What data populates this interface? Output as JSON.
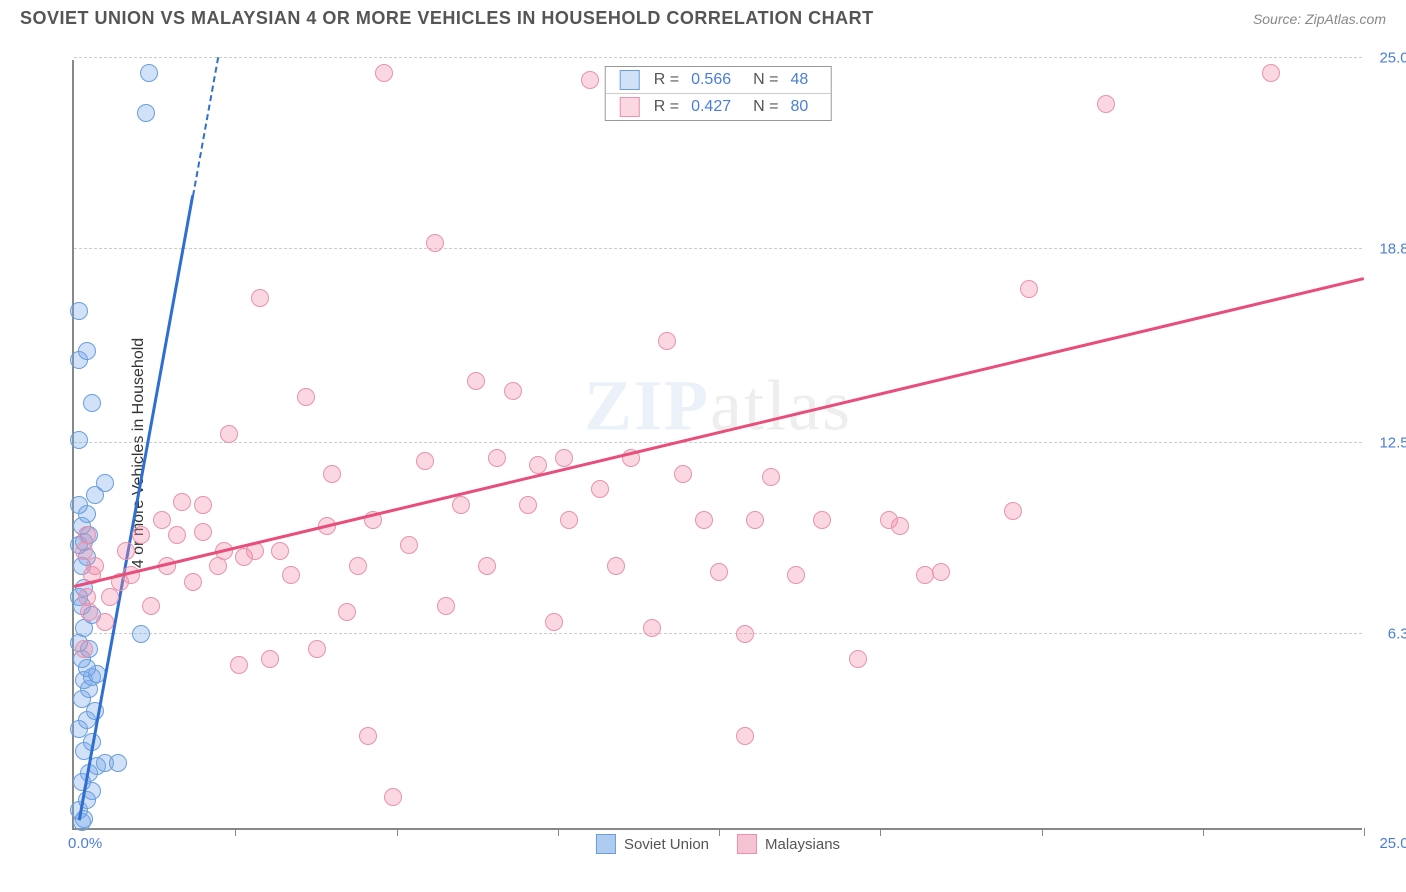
{
  "header": {
    "title": "SOVIET UNION VS MALAYSIAN 4 OR MORE VEHICLES IN HOUSEHOLD CORRELATION CHART",
    "source": "Source: ZipAtlas.com"
  },
  "chart": {
    "type": "scatter",
    "ylabel": "4 or more Vehicles in Household",
    "xlim": [
      0,
      25
    ],
    "ylim": [
      0,
      25
    ],
    "x_origin_label": "0.0%",
    "x_max_label": "25.0%",
    "yticks": [
      {
        "v": 6.3,
        "label": "6.3%"
      },
      {
        "v": 12.5,
        "label": "12.5%"
      },
      {
        "v": 18.8,
        "label": "18.8%"
      },
      {
        "v": 25.0,
        "label": "25.0%"
      }
    ],
    "xticks": [
      3.125,
      6.25,
      9.375,
      12.5,
      15.625,
      18.75,
      21.875,
      25
    ],
    "grid_color": "#cccccc",
    "background_color": "#ffffff",
    "axis_color": "#888888",
    "tick_label_color": "#4a7dd8",
    "marker_radius": 9,
    "watermark": "ZIPatlas",
    "series": [
      {
        "name": "Soviet Union",
        "color_fill": "rgba(120,170,235,0.35)",
        "color_stroke": "#6a9edb",
        "trend_color": "#2f6fd0",
        "r": "0.566",
        "n": "48",
        "trend": {
          "x1": 0.1,
          "y1": 0.2,
          "x2": 2.3,
          "y2": 20.5,
          "dash_to_y": 27
        },
        "points": [
          [
            0.15,
            0.2
          ],
          [
            0.2,
            0.3
          ],
          [
            0.1,
            0.6
          ],
          [
            0.25,
            0.9
          ],
          [
            0.35,
            1.2
          ],
          [
            0.15,
            1.5
          ],
          [
            0.3,
            1.8
          ],
          [
            0.45,
            2.0
          ],
          [
            0.6,
            2.1
          ],
          [
            0.85,
            2.1
          ],
          [
            0.2,
            2.5
          ],
          [
            0.35,
            2.8
          ],
          [
            0.1,
            3.2
          ],
          [
            0.25,
            3.5
          ],
          [
            0.4,
            3.8
          ],
          [
            0.15,
            4.2
          ],
          [
            0.3,
            4.5
          ],
          [
            0.2,
            4.8
          ],
          [
            0.35,
            4.9
          ],
          [
            0.45,
            5.0
          ],
          [
            0.25,
            5.2
          ],
          [
            0.15,
            5.5
          ],
          [
            0.3,
            5.8
          ],
          [
            0.1,
            6.0
          ],
          [
            1.3,
            6.3
          ],
          [
            0.2,
            6.5
          ],
          [
            0.35,
            6.9
          ],
          [
            0.15,
            7.2
          ],
          [
            0.1,
            7.5
          ],
          [
            0.2,
            7.8
          ],
          [
            0.15,
            8.5
          ],
          [
            0.25,
            8.8
          ],
          [
            0.1,
            9.2
          ],
          [
            0.2,
            9.3
          ],
          [
            0.3,
            9.5
          ],
          [
            0.15,
            9.8
          ],
          [
            0.25,
            10.2
          ],
          [
            0.1,
            10.5
          ],
          [
            0.4,
            10.8
          ],
          [
            0.6,
            11.2
          ],
          [
            0.1,
            12.6
          ],
          [
            0.35,
            13.8
          ],
          [
            0.1,
            15.2
          ],
          [
            0.25,
            15.5
          ],
          [
            0.1,
            16.8
          ],
          [
            1.4,
            23.2
          ],
          [
            1.45,
            24.5
          ]
        ]
      },
      {
        "name": "Malaysians",
        "color_fill": "rgba(240,140,170,0.35)",
        "color_stroke": "#e892ad",
        "trend_color": "#e94d7a",
        "r": "0.427",
        "n": "80",
        "trend": {
          "x1": 0.0,
          "y1": 7.8,
          "x2": 25.0,
          "y2": 17.8
        },
        "points": [
          [
            0.2,
            5.8
          ],
          [
            0.3,
            7.0
          ],
          [
            0.25,
            7.5
          ],
          [
            0.35,
            8.2
          ],
          [
            0.4,
            8.5
          ],
          [
            0.2,
            9.0
          ],
          [
            0.25,
            9.5
          ],
          [
            0.6,
            6.7
          ],
          [
            0.7,
            7.5
          ],
          [
            0.9,
            8.0
          ],
          [
            1.0,
            9.0
          ],
          [
            1.1,
            8.2
          ],
          [
            1.3,
            9.5
          ],
          [
            1.5,
            7.2
          ],
          [
            1.7,
            10.0
          ],
          [
            1.8,
            8.5
          ],
          [
            2.0,
            9.5
          ],
          [
            2.1,
            10.6
          ],
          [
            2.3,
            8.0
          ],
          [
            2.5,
            9.6
          ],
          [
            2.5,
            10.5
          ],
          [
            2.8,
            8.5
          ],
          [
            2.9,
            9.0
          ],
          [
            3.0,
            12.8
          ],
          [
            3.2,
            5.3
          ],
          [
            3.3,
            8.8
          ],
          [
            3.5,
            9.0
          ],
          [
            3.6,
            17.2
          ],
          [
            3.8,
            5.5
          ],
          [
            4.0,
            9.0
          ],
          [
            4.2,
            8.2
          ],
          [
            4.5,
            14.0
          ],
          [
            4.7,
            5.8
          ],
          [
            4.9,
            9.8
          ],
          [
            5.0,
            11.5
          ],
          [
            5.3,
            7.0
          ],
          [
            5.5,
            8.5
          ],
          [
            5.7,
            3.0
          ],
          [
            5.8,
            10.0
          ],
          [
            6.0,
            24.5
          ],
          [
            6.19,
            1.0
          ],
          [
            6.5,
            9.2
          ],
          [
            6.8,
            11.9
          ],
          [
            7.0,
            19.0
          ],
          [
            7.2,
            7.2
          ],
          [
            7.5,
            10.5
          ],
          [
            7.8,
            14.5
          ],
          [
            8.0,
            8.5
          ],
          [
            8.2,
            12.0
          ],
          [
            8.5,
            14.2
          ],
          [
            8.8,
            10.5
          ],
          [
            9.0,
            11.8
          ],
          [
            9.3,
            6.7
          ],
          [
            9.5,
            12.0
          ],
          [
            9.6,
            10.0
          ],
          [
            10.0,
            24.3
          ],
          [
            10.2,
            11.0
          ],
          [
            10.5,
            8.5
          ],
          [
            10.8,
            12.0
          ],
          [
            11.2,
            6.5
          ],
          [
            11.5,
            15.8
          ],
          [
            11.8,
            11.5
          ],
          [
            12.2,
            10.0
          ],
          [
            12.5,
            8.3
          ],
          [
            13.0,
            6.3
          ],
          [
            13.0,
            3.0
          ],
          [
            13.2,
            10.0
          ],
          [
            13.5,
            11.4
          ],
          [
            14.0,
            8.2
          ],
          [
            14.5,
            10.0
          ],
          [
            15.2,
            5.5
          ],
          [
            15.8,
            10.0
          ],
          [
            16.0,
            9.8
          ],
          [
            16.5,
            8.2
          ],
          [
            16.8,
            8.3
          ],
          [
            18.2,
            10.3
          ],
          [
            18.5,
            17.5
          ],
          [
            20.0,
            23.5
          ],
          [
            23.2,
            24.5
          ]
        ]
      }
    ],
    "legend": {
      "items": [
        {
          "label": "Soviet Union",
          "fill": "#aeccf0",
          "stroke": "#6a9edb"
        },
        {
          "label": "Malaysians",
          "fill": "#f5c3d2",
          "stroke": "#e892ad"
        }
      ]
    }
  }
}
